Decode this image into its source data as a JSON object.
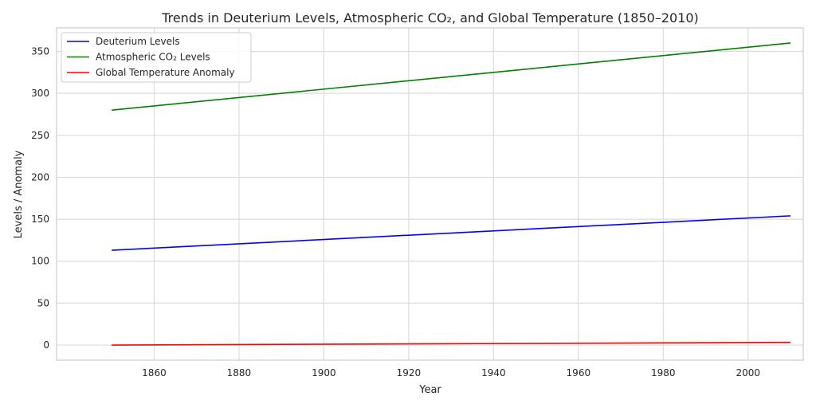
{
  "chart_data": {
    "type": "line",
    "title": "Trends in Deuterium Levels, Atmospheric CO₂, and Global Temperature (1850–2010)",
    "xlabel": "Year",
    "ylabel": "Levels / Anomaly",
    "xlim": [
      1837,
      2013
    ],
    "ylim": [
      -18,
      378
    ],
    "x_ticks": [
      1860,
      1880,
      1900,
      1920,
      1940,
      1960,
      1980,
      2000
    ],
    "y_ticks": [
      0,
      50,
      100,
      150,
      200,
      250,
      300,
      350
    ],
    "grid": true,
    "legend_position": "top-left",
    "x": [
      1850,
      2010
    ],
    "series": [
      {
        "name": "Deuterium Levels",
        "color": "#0000ff",
        "values": [
          113,
          154
        ]
      },
      {
        "name": "Atmospheric CO₂ Levels",
        "color": "#008000",
        "values": [
          280,
          360
        ]
      },
      {
        "name": "Global Temperature Anomaly",
        "color": "#ff0000",
        "values": [
          0,
          3.2
        ]
      }
    ]
  }
}
